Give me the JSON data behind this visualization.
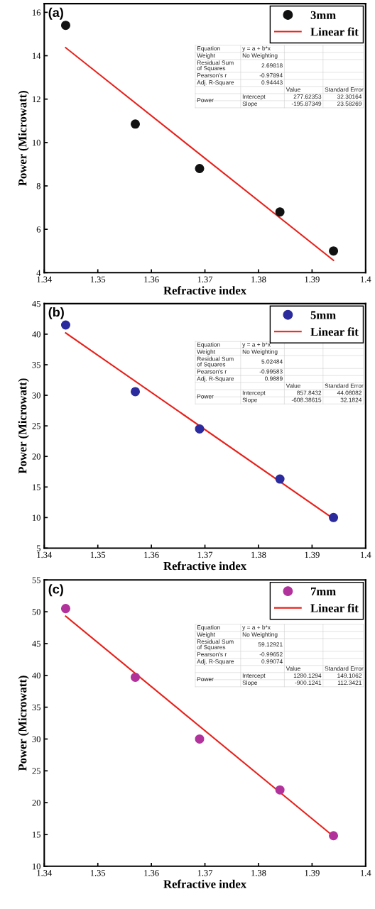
{
  "chart_data": [
    {
      "type": "scatter",
      "title": "(a)",
      "xlabel": "Refractive index",
      "ylabel": "Power (Microwatt)",
      "xlim": [
        1.34,
        1.4
      ],
      "xticks": [
        1.34,
        1.35,
        1.36,
        1.37,
        1.38,
        1.39,
        1.4
      ],
      "ylim": [
        4,
        16.4
      ],
      "yticks": [
        4,
        6,
        8,
        10,
        12,
        14,
        16
      ],
      "legend": "top right",
      "grid": false,
      "marker": "circle",
      "series": [
        {
          "name": "3mm",
          "color": "#111111",
          "x": [
            1.344,
            1.357,
            1.369,
            1.384,
            1.394
          ],
          "values": [
            15.4,
            10.85,
            8.8,
            6.8,
            5.0
          ]
        },
        {
          "name": "Linear fit",
          "type": "line",
          "color": "#e8201a",
          "marker": "none",
          "x": [
            1.344,
            1.394
          ],
          "values": [
            14.37,
            4.57
          ]
        }
      ],
      "annotations": [
        "Equation",
        "y = a + b*x",
        "Weight",
        "No Weighting",
        "Residual Sum\nof Squares",
        "2.69818",
        "Pearson's r",
        "-0.97894",
        "Adj. R-Square",
        "0.94443",
        "Value",
        "Standard Error",
        "Power",
        "Intercept",
        "277.62353",
        "32.30164",
        "Slope",
        "-195.87349",
        "23.58269"
      ]
    },
    {
      "type": "scatter",
      "title": "(b)",
      "xlabel": "Refractive index",
      "ylabel": "Power (Microwatt)",
      "xlim": [
        1.34,
        1.4
      ],
      "xticks": [
        1.34,
        1.35,
        1.36,
        1.37,
        1.38,
        1.39,
        1.4
      ],
      "ylim": [
        5,
        45
      ],
      "yticks": [
        5,
        10,
        15,
        20,
        25,
        30,
        35,
        40,
        45
      ],
      "legend": "top right",
      "grid": false,
      "marker": "circle",
      "series": [
        {
          "name": "5mm",
          "color": "#2b2b9e",
          "x": [
            1.344,
            1.357,
            1.369,
            1.384,
            1.394
          ],
          "values": [
            41.5,
            30.6,
            24.5,
            16.3,
            10.0
          ]
        },
        {
          "name": "Linear fit",
          "type": "line",
          "color": "#e8201a",
          "marker": "none",
          "x": [
            1.344,
            1.394
          ],
          "values": [
            40.2,
            9.8
          ]
        }
      ],
      "annotations": [
        "Equation",
        "y = a + b*x",
        "Weight",
        "No Weighting",
        "Residual Sum\nof Squares",
        "5.02484",
        "Pearson's r",
        "-0.99583",
        "Adj. R-Square",
        "0.9889",
        "Value",
        "Standard Error",
        "Power",
        "Intercept",
        "857.8432",
        "44.08082",
        "Slope",
        "-608.38615",
        "32.1824"
      ]
    },
    {
      "type": "scatter",
      "title": "(c)",
      "xlabel": "Refractive index",
      "ylabel": "Power (Microwatt)",
      "xlim": [
        1.34,
        1.4
      ],
      "xticks": [
        1.34,
        1.35,
        1.36,
        1.37,
        1.38,
        1.39,
        1.4
      ],
      "ylim": [
        10,
        55
      ],
      "yticks": [
        10,
        15,
        20,
        25,
        30,
        35,
        40,
        45,
        50,
        55
      ],
      "legend": "top right",
      "grid": false,
      "marker": "circle",
      "series": [
        {
          "name": "7mm",
          "color": "#b2329c",
          "x": [
            1.344,
            1.357,
            1.369,
            1.384,
            1.394
          ],
          "values": [
            50.5,
            39.7,
            30.0,
            22.0,
            14.8
          ]
        },
        {
          "name": "Linear fit",
          "type": "line",
          "color": "#e8201a",
          "marker": "none",
          "x": [
            1.344,
            1.394
          ],
          "values": [
            49.3,
            14.7
          ]
        }
      ],
      "annotations": [
        "Equation",
        "y = a + b*x",
        "Weight",
        "No Weighting",
        "Residual Sum\nof Squares",
        "59.12921",
        "Pearson's r",
        "-0.99652",
        "Adj. R-Square",
        "0.99074",
        "Value",
        "Standard Error",
        "Power",
        "Intercept",
        "1280.1294",
        "149.1062",
        "Slope",
        "-900.1241",
        "112.3421"
      ]
    }
  ]
}
